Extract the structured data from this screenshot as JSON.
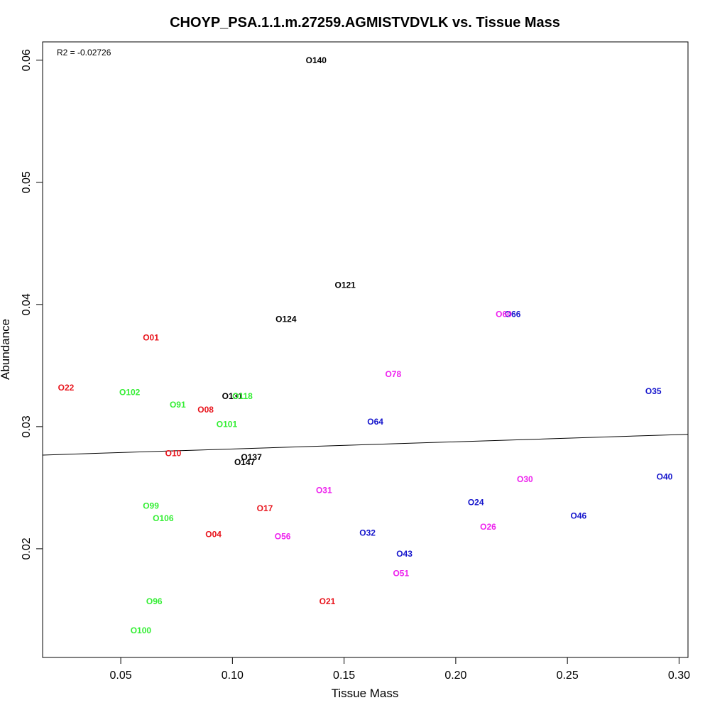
{
  "chart_data": {
    "type": "scatter",
    "title": "CHOYP_PSA.1.1.m.27259.AGMISTVDVLK vs. Tissue Mass",
    "xlabel": "Tissue Mass",
    "ylabel": "Abundance",
    "annotation": "R2 = -0.02726",
    "xlim": [
      0.015,
      0.304
    ],
    "ylim": [
      0.0111,
      0.0615
    ],
    "xticks": [
      0.05,
      0.1,
      0.15,
      0.2,
      0.25,
      0.3
    ],
    "xtick_labels": [
      "0.05",
      "0.10",
      "0.15",
      "0.20",
      "0.25",
      "0.30"
    ],
    "yticks": [
      0.02,
      0.03,
      0.04,
      0.05,
      0.06
    ],
    "ytick_labels": [
      "0.02",
      "0.03",
      "0.04",
      "0.05",
      "0.06"
    ],
    "grid": false,
    "regression_line": {
      "x": [
        0.015,
        0.304
      ],
      "y": [
        0.02767,
        0.02937
      ]
    },
    "colors": {
      "black": "#000000",
      "red": "#e8141c",
      "green": "#33ee33",
      "blue": "#1414cc",
      "magenta": "#ee22ee"
    },
    "points": [
      {
        "label": "O140",
        "x": 0.1375,
        "y": 0.06,
        "color": "#000000"
      },
      {
        "label": "O121",
        "x": 0.1505,
        "y": 0.0416,
        "color": "#000000"
      },
      {
        "label": "O124",
        "x": 0.124,
        "y": 0.0388,
        "color": "#000000"
      },
      {
        "label": "O131",
        "x": 0.1,
        "y": 0.0325,
        "color": "#000000"
      },
      {
        "label": "O137",
        "x": 0.1085,
        "y": 0.0275,
        "color": "#000000"
      },
      {
        "label": "O147",
        "x": 0.1055,
        "y": 0.0271,
        "color": "#000000"
      },
      {
        "label": "O01",
        "x": 0.0635,
        "y": 0.0373,
        "color": "#e8141c"
      },
      {
        "label": "O22",
        "x": 0.0255,
        "y": 0.0332,
        "color": "#e8141c"
      },
      {
        "label": "O08",
        "x": 0.088,
        "y": 0.0314,
        "color": "#e8141c"
      },
      {
        "label": "O10",
        "x": 0.0735,
        "y": 0.0278,
        "color": "#e8141c"
      },
      {
        "label": "O17",
        "x": 0.1145,
        "y": 0.0233,
        "color": "#e8141c"
      },
      {
        "label": "O04",
        "x": 0.0915,
        "y": 0.0212,
        "color": "#e8141c"
      },
      {
        "label": "O21",
        "x": 0.1425,
        "y": 0.0157,
        "color": "#e8141c"
      },
      {
        "label": "O102",
        "x": 0.054,
        "y": 0.0328,
        "color": "#33ee33"
      },
      {
        "label": "O118",
        "x": 0.1045,
        "y": 0.0325,
        "color": "#33ee33"
      },
      {
        "label": "O91",
        "x": 0.0755,
        "y": 0.0318,
        "color": "#33ee33"
      },
      {
        "label": "O101",
        "x": 0.0975,
        "y": 0.0302,
        "color": "#33ee33"
      },
      {
        "label": "O99",
        "x": 0.0635,
        "y": 0.0235,
        "color": "#33ee33"
      },
      {
        "label": "O106",
        "x": 0.069,
        "y": 0.0225,
        "color": "#33ee33"
      },
      {
        "label": "O96",
        "x": 0.065,
        "y": 0.0157,
        "color": "#33ee33"
      },
      {
        "label": "O100",
        "x": 0.059,
        "y": 0.0133,
        "color": "#33ee33"
      },
      {
        "label": "O66",
        "x": 0.2255,
        "y": 0.0392,
        "color": "#1414cc"
      },
      {
        "label": "O35",
        "x": 0.2885,
        "y": 0.0329,
        "color": "#1414cc"
      },
      {
        "label": "O64",
        "x": 0.164,
        "y": 0.0304,
        "color": "#1414cc"
      },
      {
        "label": "O40",
        "x": 0.2935,
        "y": 0.0259,
        "color": "#1414cc"
      },
      {
        "label": "O24",
        "x": 0.209,
        "y": 0.0238,
        "color": "#1414cc"
      },
      {
        "label": "O46",
        "x": 0.255,
        "y": 0.0227,
        "color": "#1414cc"
      },
      {
        "label": "O32",
        "x": 0.1605,
        "y": 0.0213,
        "color": "#1414cc"
      },
      {
        "label": "O43",
        "x": 0.177,
        "y": 0.0196,
        "color": "#1414cc"
      },
      {
        "label": "O60",
        "x": 0.2215,
        "y": 0.0392,
        "color": "#ee22ee"
      },
      {
        "label": "O78",
        "x": 0.172,
        "y": 0.0343,
        "color": "#ee22ee"
      },
      {
        "label": "O30",
        "x": 0.231,
        "y": 0.0257,
        "color": "#ee22ee"
      },
      {
        "label": "O31",
        "x": 0.141,
        "y": 0.0248,
        "color": "#ee22ee"
      },
      {
        "label": "O26",
        "x": 0.2145,
        "y": 0.0218,
        "color": "#ee22ee"
      },
      {
        "label": "O56",
        "x": 0.1225,
        "y": 0.021,
        "color": "#ee22ee"
      },
      {
        "label": "O51",
        "x": 0.1755,
        "y": 0.018,
        "color": "#ee22ee"
      }
    ]
  }
}
